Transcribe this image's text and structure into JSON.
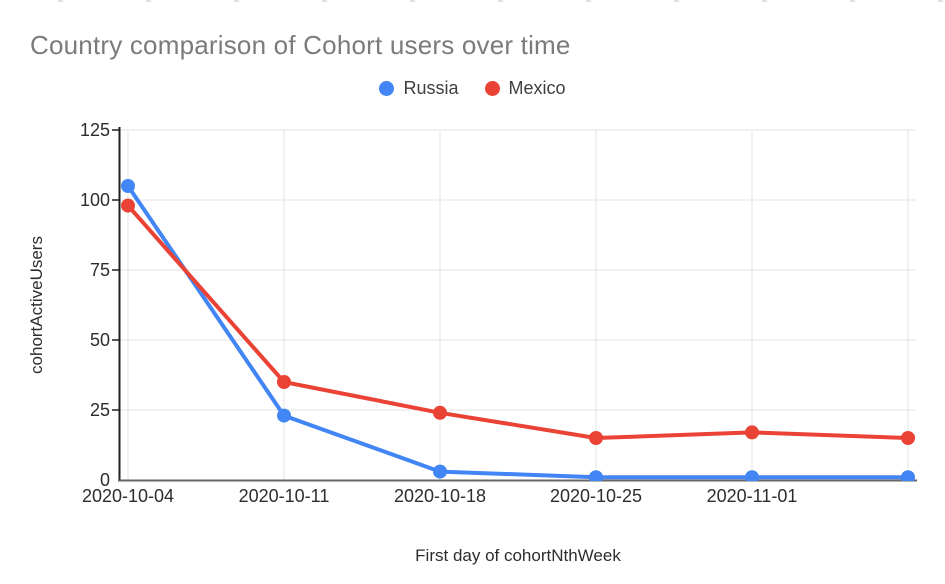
{
  "chart_data": {
    "type": "line",
    "title": "Country comparison of Cohort users over time",
    "xlabel": "First day of cohortNthWeek",
    "ylabel": "cohortActiveUsers",
    "categories": [
      "2020-10-04",
      "2020-10-11",
      "2020-10-18",
      "2020-10-25",
      "2020-11-01",
      ""
    ],
    "series": [
      {
        "name": "Russia",
        "color": "#4285F4",
        "values": [
          105,
          23,
          3,
          1,
          1,
          1
        ]
      },
      {
        "name": "Mexico",
        "color": "#EA4335",
        "values": [
          98,
          35,
          24,
          15,
          17,
          15
        ]
      }
    ],
    "ylim": [
      0,
      125
    ],
    "yticks": [
      0,
      25,
      50,
      75,
      100,
      125
    ],
    "grid": true,
    "legend_position": "top-center",
    "marker": "circle"
  },
  "styles": {
    "background": "#ffffff",
    "title_color": "#7b7b7b",
    "tick_label_color": "#2d2d2d",
    "axis_title_color": "#2d2d2d",
    "legend_text_color": "#3c4043",
    "grid_color": "#e3e3e3",
    "x_axis_color": "#666666",
    "y_axis_color": "#1f1f1f"
  }
}
